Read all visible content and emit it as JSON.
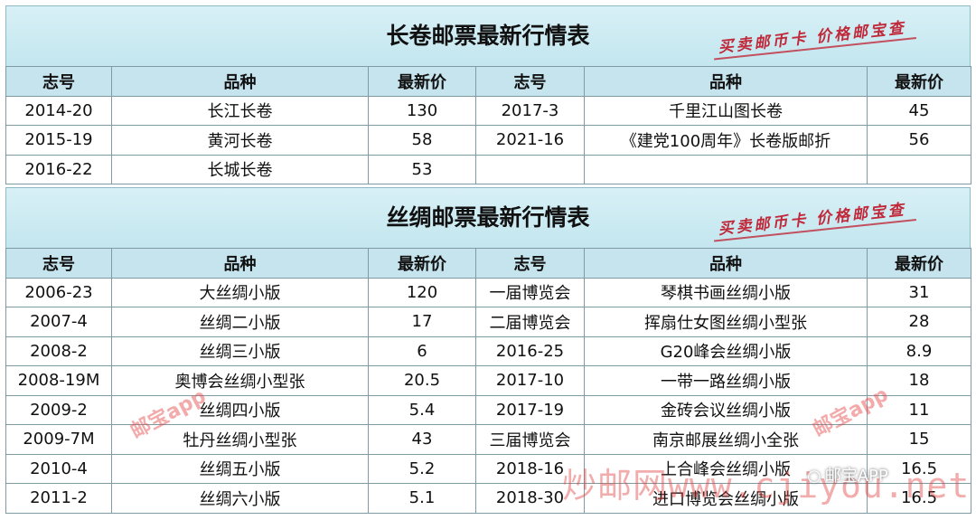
{
  "tables": [
    {
      "title": "长卷邮票最新行情表",
      "stamp": "买卖邮币卡 价格邮宝查",
      "headers": [
        "志号",
        "品种",
        "最新价",
        "志号",
        "品种",
        "最新价"
      ],
      "rows": [
        [
          "2014-20",
          "长江长卷",
          "130",
          "2017-3",
          "千里江山图长卷",
          "45"
        ],
        [
          "2015-19",
          "黄河长卷",
          "58",
          "2021-16",
          "《建党100周年》长卷版邮折",
          "56"
        ],
        [
          "2016-22",
          "长城长卷",
          "53",
          "",
          "",
          ""
        ]
      ]
    },
    {
      "title": "丝绸邮票最新行情表",
      "stamp": "买卖邮币卡 价格邮宝查",
      "headers": [
        "志号",
        "品种",
        "最新价",
        "志号",
        "品种",
        "最新价"
      ],
      "rows": [
        [
          "2006-23",
          "大丝绸小版",
          "120",
          "一届博览会",
          "琴棋书画丝绸小版",
          "31"
        ],
        [
          "2007-4",
          "丝绸二小版",
          "17",
          "二届博览会",
          "挥扇仕女图丝绸小型张",
          "28"
        ],
        [
          "2008-2",
          "丝绸三小版",
          "6",
          "2016-25",
          "G20峰会丝绸小版",
          "8.9"
        ],
        [
          "2008-19M",
          "奥博会丝绸小型张",
          "20.5",
          "2017-10",
          "一带一路丝绸小版",
          "18"
        ],
        [
          "2009-2",
          "丝绸四小版",
          "5.4",
          "2017-19",
          "金砖会议丝绸小版",
          "11"
        ],
        [
          "2009-7M",
          "牡丹丝绸小型张",
          "43",
          "三届博览会",
          "南京邮展丝绸小全张",
          "15"
        ],
        [
          "2010-4",
          "丝绸五小版",
          "5.2",
          "2018-16",
          "上合峰会丝绸小版",
          "16.5"
        ],
        [
          "2011-2",
          "丝绸六小版",
          "5.1",
          "2018-30",
          "进口博览会丝绸小版",
          "16.5"
        ]
      ]
    }
  ],
  "watermarks": {
    "app": "邮宝app",
    "site": "炒邮网www.cjiyou.net",
    "wechat": "邮宝APP",
    "wechat_icon": "wechat-icon"
  },
  "colors": {
    "header_bg": "#c6e4ee",
    "title_bg": "#c3e6ef",
    "stamp_red": "#c0293a"
  }
}
